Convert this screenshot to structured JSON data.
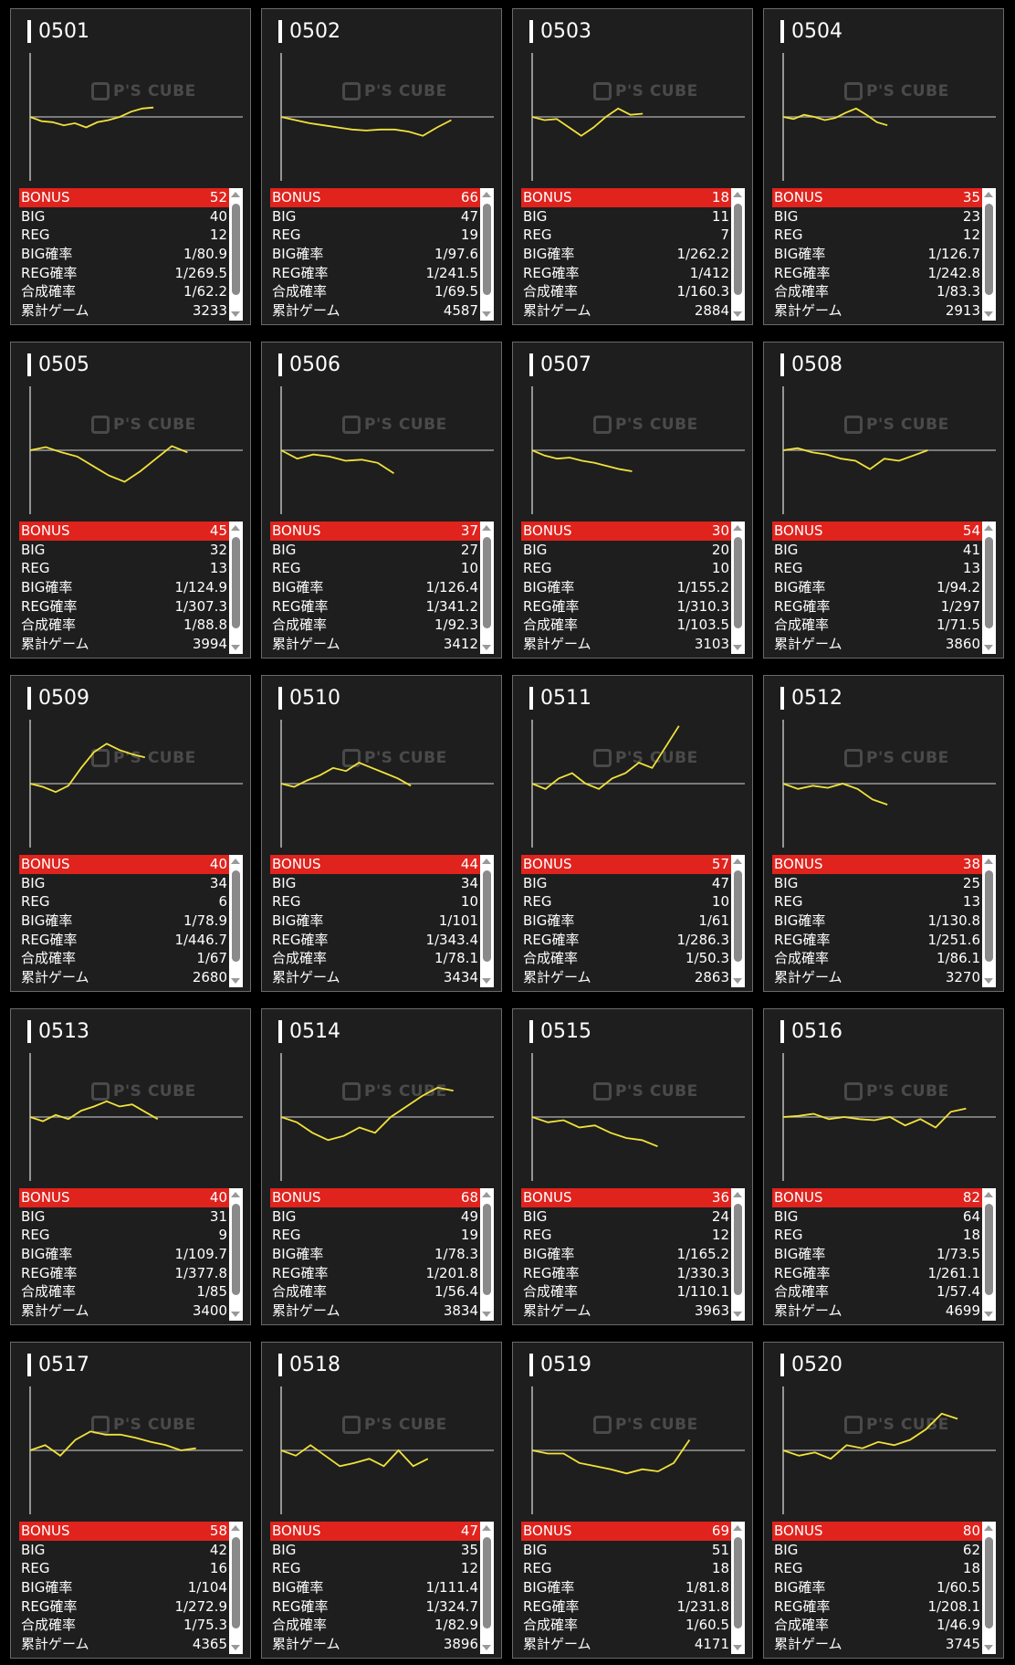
{
  "labels": {
    "bonus": "BONUS",
    "big": "BIG",
    "reg": "REG",
    "big_rate": "BIG確率",
    "reg_rate": "REG確率",
    "total_rate": "合成確率",
    "games": "累計ゲーム",
    "watermark": "P's CUBE"
  },
  "colors": {
    "line": "#f2e23a",
    "bonus_bg": "#e0231d",
    "card_bg": "#1e1e1e"
  },
  "machines": [
    {
      "id": "0501",
      "bonus": "52",
      "big": "40",
      "reg": "12",
      "big_rate": "1/80.9",
      "reg_rate": "1/269.5",
      "total_rate": "1/62.2",
      "games": "3233",
      "progress": 0.58,
      "graph": [
        0,
        -4,
        -5,
        -8,
        -6,
        -10,
        -5,
        -3,
        0,
        5,
        8,
        9
      ]
    },
    {
      "id": "0502",
      "bonus": "66",
      "big": "47",
      "reg": "19",
      "big_rate": "1/97.6",
      "reg_rate": "1/241.5",
      "total_rate": "1/69.5",
      "games": "4587",
      "progress": 0.8,
      "graph": [
        0,
        -3,
        -6,
        -8,
        -10,
        -12,
        -13,
        -12,
        -12,
        -14,
        -18,
        -10,
        -3
      ]
    },
    {
      "id": "0503",
      "bonus": "18",
      "big": "11",
      "reg": "7",
      "big_rate": "1/262.2",
      "reg_rate": "1/412",
      "total_rate": "1/160.3",
      "games": "2884",
      "progress": 0.52,
      "graph": [
        0,
        -3,
        -2,
        -10,
        -18,
        -10,
        0,
        8,
        2,
        3
      ]
    },
    {
      "id": "0504",
      "bonus": "35",
      "big": "23",
      "reg": "12",
      "big_rate": "1/126.7",
      "reg_rate": "1/242.8",
      "total_rate": "1/83.3",
      "games": "2913",
      "progress": 0.49,
      "graph": [
        0,
        -2,
        2,
        0,
        -3,
        -1,
        4,
        8,
        2,
        -5,
        -8
      ]
    },
    {
      "id": "0505",
      "bonus": "45",
      "big": "32",
      "reg": "13",
      "big_rate": "1/124.9",
      "reg_rate": "1/307.3",
      "total_rate": "1/88.8",
      "games": "3994",
      "progress": 0.74,
      "graph": [
        0,
        3,
        -2,
        -6,
        -15,
        -24,
        -30,
        -20,
        -8,
        4,
        -2
      ]
    },
    {
      "id": "0506",
      "bonus": "37",
      "big": "27",
      "reg": "10",
      "big_rate": "1/126.4",
      "reg_rate": "1/341.2",
      "total_rate": "1/92.3",
      "games": "3412",
      "progress": 0.53,
      "graph": [
        0,
        -8,
        -4,
        -6,
        -10,
        -9,
        -12,
        -22
      ]
    },
    {
      "id": "0507",
      "bonus": "30",
      "big": "20",
      "reg": "10",
      "big_rate": "1/155.2",
      "reg_rate": "1/310.3",
      "total_rate": "1/103.5",
      "games": "3103",
      "progress": 0.47,
      "graph": [
        0,
        -5,
        -8,
        -7,
        -10,
        -12,
        -15,
        -18,
        -20
      ]
    },
    {
      "id": "0508",
      "bonus": "54",
      "big": "41",
      "reg": "13",
      "big_rate": "1/94.2",
      "reg_rate": "1/297",
      "total_rate": "1/71.5",
      "games": "3860",
      "progress": 0.68,
      "graph": [
        0,
        2,
        -2,
        -4,
        -8,
        -10,
        -18,
        -8,
        -10,
        -5,
        0
      ]
    },
    {
      "id": "0509",
      "bonus": "40",
      "big": "34",
      "reg": "6",
      "big_rate": "1/78.9",
      "reg_rate": "1/446.7",
      "total_rate": "1/67",
      "games": "2680",
      "progress": 0.54,
      "graph": [
        0,
        -3,
        -8,
        -2,
        15,
        30,
        38,
        32,
        28,
        25
      ]
    },
    {
      "id": "0510",
      "bonus": "44",
      "big": "34",
      "reg": "10",
      "big_rate": "1/101",
      "reg_rate": "1/343.4",
      "total_rate": "1/78.1",
      "games": "3434",
      "progress": 0.61,
      "graph": [
        0,
        -3,
        3,
        8,
        15,
        12,
        20,
        15,
        10,
        5,
        -2
      ]
    },
    {
      "id": "0511",
      "bonus": "57",
      "big": "47",
      "reg": "10",
      "big_rate": "1/61",
      "reg_rate": "1/286.3",
      "total_rate": "1/50.3",
      "games": "2863",
      "progress": 0.69,
      "graph": [
        0,
        -5,
        5,
        10,
        0,
        -5,
        5,
        10,
        20,
        15,
        35,
        55
      ]
    },
    {
      "id": "0512",
      "bonus": "38",
      "big": "25",
      "reg": "13",
      "big_rate": "1/130.8",
      "reg_rate": "1/251.6",
      "total_rate": "1/86.1",
      "games": "3270",
      "progress": 0.49,
      "graph": [
        0,
        -5,
        -2,
        -4,
        0,
        -5,
        -15,
        -20
      ]
    },
    {
      "id": "0513",
      "bonus": "40",
      "big": "31",
      "reg": "9",
      "big_rate": "1/109.7",
      "reg_rate": "1/377.8",
      "total_rate": "1/85",
      "games": "3400",
      "progress": 0.6,
      "graph": [
        0,
        -4,
        2,
        -2,
        6,
        10,
        15,
        10,
        12,
        5,
        -2
      ]
    },
    {
      "id": "0514",
      "bonus": "68",
      "big": "49",
      "reg": "19",
      "big_rate": "1/78.3",
      "reg_rate": "1/201.8",
      "total_rate": "1/56.4",
      "games": "3834",
      "progress": 0.81,
      "graph": [
        0,
        -5,
        -15,
        -22,
        -18,
        -10,
        -15,
        0,
        10,
        20,
        28,
        25
      ]
    },
    {
      "id": "0515",
      "bonus": "36",
      "big": "24",
      "reg": "12",
      "big_rate": "1/165.2",
      "reg_rate": "1/330.3",
      "total_rate": "1/110.1",
      "games": "3963",
      "progress": 0.59,
      "graph": [
        0,
        -5,
        -3,
        -10,
        -8,
        -15,
        -20,
        -22,
        -28
      ]
    },
    {
      "id": "0516",
      "bonus": "82",
      "big": "64",
      "reg": "18",
      "big_rate": "1/73.5",
      "reg_rate": "1/261.1",
      "total_rate": "1/57.4",
      "games": "4699",
      "progress": 0.86,
      "graph": [
        0,
        1,
        3,
        -2,
        0,
        -2,
        -3,
        0,
        -8,
        -2,
        -10,
        5,
        8
      ]
    },
    {
      "id": "0517",
      "bonus": "58",
      "big": "42",
      "reg": "16",
      "big_rate": "1/104",
      "reg_rate": "1/272.9",
      "total_rate": "1/75.3",
      "games": "4365",
      "progress": 0.78,
      "graph": [
        0,
        5,
        -5,
        10,
        18,
        15,
        15,
        12,
        8,
        5,
        0,
        2
      ]
    },
    {
      "id": "0518",
      "bonus": "47",
      "big": "35",
      "reg": "12",
      "big_rate": "1/111.4",
      "reg_rate": "1/324.7",
      "total_rate": "1/82.9",
      "games": "3896",
      "progress": 0.69,
      "graph": [
        0,
        -5,
        5,
        -5,
        -15,
        -12,
        -8,
        -15,
        0,
        -15,
        -8
      ]
    },
    {
      "id": "0519",
      "bonus": "69",
      "big": "51",
      "reg": "18",
      "big_rate": "1/81.8",
      "reg_rate": "1/231.8",
      "total_rate": "1/60.5",
      "games": "4171",
      "progress": 0.74,
      "graph": [
        0,
        -3,
        -3,
        -12,
        -15,
        -18,
        -22,
        -18,
        -20,
        -12,
        10
      ]
    },
    {
      "id": "0520",
      "bonus": "80",
      "big": "62",
      "reg": "18",
      "big_rate": "1/60.5",
      "reg_rate": "1/208.1",
      "total_rate": "1/46.9",
      "games": "3745",
      "progress": 0.82,
      "graph": [
        0,
        -5,
        -2,
        -8,
        5,
        2,
        8,
        5,
        10,
        20,
        35,
        30
      ]
    }
  ]
}
